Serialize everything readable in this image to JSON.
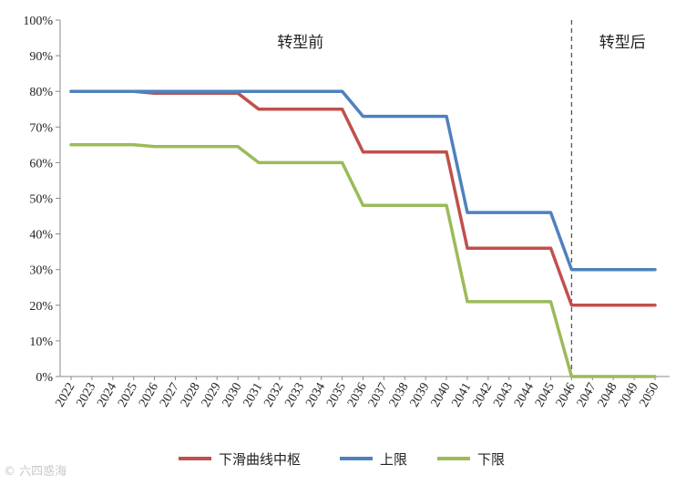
{
  "chart_data": {
    "type": "line",
    "x": [
      "2022",
      "2023",
      "2024",
      "2025",
      "2026",
      "2027",
      "2028",
      "2029",
      "2030",
      "2031",
      "2032",
      "2033",
      "2034",
      "2035",
      "2036",
      "2037",
      "2038",
      "2039",
      "2040",
      "2041",
      "2042",
      "2043",
      "2044",
      "2045",
      "2046",
      "2047",
      "2048",
      "2049",
      "2050"
    ],
    "y_ticks": [
      "0%",
      "10%",
      "20%",
      "30%",
      "40%",
      "50%",
      "60%",
      "70%",
      "80%",
      "90%",
      "100%"
    ],
    "ylim": [
      0,
      100
    ],
    "grid": false,
    "legend_position": "bottom",
    "annotations": [
      {
        "label": "转型前"
      },
      {
        "label": "转型后"
      }
    ],
    "divider_at": "2046",
    "series": [
      {
        "name": "下滑曲线中枢",
        "color": "#c0504d",
        "values": [
          80,
          80,
          80,
          80,
          79.5,
          79.5,
          79.5,
          79.5,
          79.5,
          75,
          75,
          75,
          75,
          75,
          63,
          63,
          63,
          63,
          63,
          36,
          36,
          36,
          36,
          36,
          20,
          20,
          20,
          20,
          20
        ]
      },
      {
        "name": "上限",
        "color": "#4f81bd",
        "values": [
          80,
          80,
          80,
          80,
          80,
          80,
          80,
          80,
          80,
          80,
          80,
          80,
          80,
          80,
          73,
          73,
          73,
          73,
          73,
          46,
          46,
          46,
          46,
          46,
          30,
          30,
          30,
          30,
          30
        ]
      },
      {
        "name": "下限",
        "color": "#9bbb59",
        "values": [
          65,
          65,
          65,
          65,
          64.5,
          64.5,
          64.5,
          64.5,
          64.5,
          60,
          60,
          60,
          60,
          60,
          48,
          48,
          48,
          48,
          48,
          21,
          21,
          21,
          21,
          21,
          0,
          0,
          0,
          0,
          0
        ]
      }
    ]
  },
  "watermark": "© 六四惑海"
}
